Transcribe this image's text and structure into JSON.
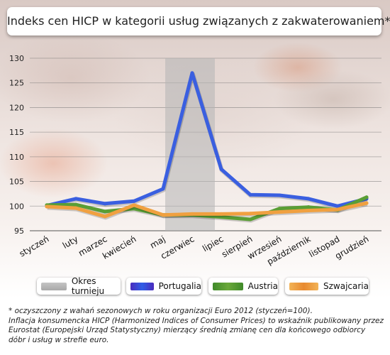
{
  "title": "Indeks cen HICP w kategorii usług związanych z zakwaterowaniem*",
  "chart_data": {
    "type": "line",
    "categories": [
      "styczeń",
      "luty",
      "marzec",
      "kwiecień",
      "maj",
      "czerwiec",
      "lipiec",
      "sierpień",
      "wrzesień",
      "październik",
      "listopad",
      "grudzień"
    ],
    "ylim": [
      95,
      130
    ],
    "yticks": [
      95,
      100,
      105,
      110,
      115,
      120,
      125,
      130
    ],
    "highlight": {
      "label": "Okres turnieju",
      "from": "maj",
      "to": "czerwiec",
      "color": "#b5b5b5"
    },
    "series": [
      {
        "name": "Portugalia",
        "color": "#3a5fe0",
        "values": [
          100.1,
          101.5,
          100.5,
          101.0,
          103.5,
          127.0,
          107.5,
          102.3,
          102.2,
          101.5,
          100.0,
          101.5
        ]
      },
      {
        "name": "Austria",
        "color": "#5a9e35",
        "values": [
          100.2,
          100.3,
          98.9,
          99.5,
          98.2,
          98.2,
          97.8,
          97.3,
          99.5,
          99.8,
          99.2,
          101.8
        ]
      },
      {
        "name": "Szwajcaria",
        "color": "#f0a040",
        "values": [
          99.9,
          99.6,
          97.9,
          100.2,
          98.2,
          98.4,
          98.4,
          98.5,
          98.8,
          99.1,
          99.3,
          100.6
        ]
      }
    ],
    "grid": true,
    "legend_position": "bottom"
  },
  "legend": [
    {
      "label": "Okres turnieju",
      "color": "#b5b5b5"
    },
    {
      "label": "Portugalia",
      "color": "#3a5fe0"
    },
    {
      "label": "Austria",
      "color": "#5a9e35"
    },
    {
      "label": "Szwajcaria",
      "color": "#f0a040"
    }
  ],
  "footnote": {
    "line1": "* oczyszczony z wahań sezonowych w roku organizacji Euro 2012 (styczeń=100).",
    "line2": "Inflacja konsumencka HICP (Harmonized Indices of Consumer Prices) to wskaźnik publikowany przez Eurostat (Europejski Urząd Statystyczny) mierzący średnią zmianę cen dla końcowego odbiorcy dóbr i usług w strefie euro."
  }
}
